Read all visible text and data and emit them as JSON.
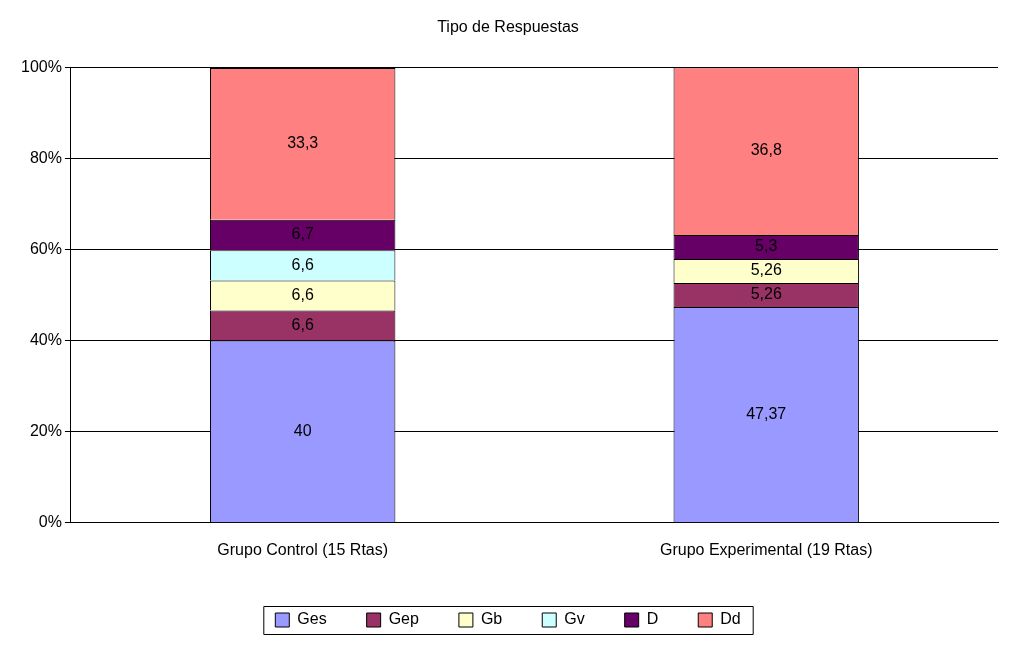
{
  "chart_data": {
    "type": "bar",
    "title": "Tipo de Respuestas",
    "stacked": true,
    "categories": [
      "Grupo Control (15 Rtas)",
      "Grupo Experimental (19 Rtas)"
    ],
    "series": [
      {
        "name": "Ges",
        "color": "#9999ff",
        "values": [
          40,
          47.37
        ],
        "value_labels": [
          "40",
          "47,37"
        ]
      },
      {
        "name": "Gep",
        "color": "#993366",
        "values": [
          6.6,
          5.26
        ],
        "value_labels": [
          "6,6",
          "5,26"
        ]
      },
      {
        "name": "Gb",
        "color": "#ffffcc",
        "values": [
          6.6,
          5.26
        ],
        "value_labels": [
          "6,6",
          "5,26"
        ]
      },
      {
        "name": "Gv",
        "color": "#ccffff",
        "values": [
          6.6,
          null
        ],
        "value_labels": [
          "6,6",
          null
        ]
      },
      {
        "name": "D",
        "color": "#660066",
        "values": [
          6.7,
          5.3
        ],
        "value_labels": [
          "6,7",
          "5,3"
        ]
      },
      {
        "name": "Dd",
        "color": "#ff8080",
        "values": [
          33.3,
          36.8
        ],
        "value_labels": [
          "33,3",
          "36,8"
        ]
      }
    ],
    "ylim": [
      0,
      100
    ],
    "yticks": [
      {
        "value": 0,
        "label": "0%"
      },
      {
        "value": 20,
        "label": "20%"
      },
      {
        "value": 40,
        "label": "40%"
      },
      {
        "value": 60,
        "label": "60%"
      },
      {
        "value": 80,
        "label": "80%"
      },
      {
        "value": 100,
        "label": "100%"
      }
    ],
    "grid": "y",
    "legend": "bottom"
  }
}
